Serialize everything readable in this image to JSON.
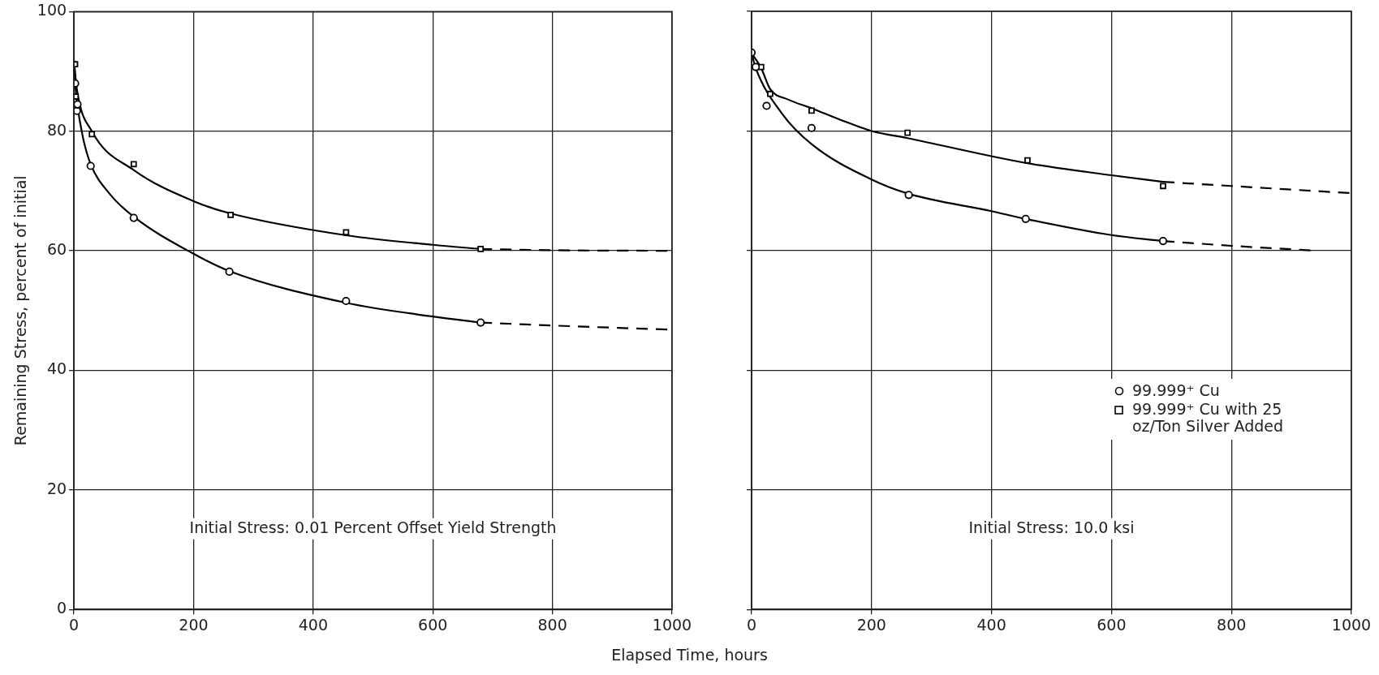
{
  "chart_data": [
    {
      "type": "scatter",
      "xlabel": "Elapsed Time, hours",
      "ylabel": "Remaining Stress, percent of initial",
      "xlim": [
        0,
        1000
      ],
      "ylim": [
        0,
        100
      ],
      "xticks": [
        0,
        200,
        400,
        600,
        800,
        1000
      ],
      "yticks": [
        0,
        20,
        40,
        60,
        80,
        100
      ],
      "grid": true,
      "legend": false,
      "annotations": [
        "Initial Stress: 0.01 Percent Offset Yield Strength"
      ],
      "series": [
        {
          "marker": "circle",
          "color": "#000000",
          "x": [
            2,
            5,
            6,
            28,
            100,
            260,
            455,
            680
          ],
          "values": [
            88,
            83.4,
            84.5,
            74.2,
            65.5,
            56.5,
            51.6,
            48
          ]
        },
        {
          "marker": "square",
          "color": "#000000",
          "x": [
            2,
            3,
            30,
            100,
            262,
            455,
            680
          ],
          "values": [
            91.2,
            85.8,
            79.5,
            74.5,
            66,
            63.1,
            60.3
          ]
        },
        {
          "type": "line",
          "line_style": "solid",
          "color": "#000000",
          "x": [
            0,
            5,
            15,
            28,
            60,
            100,
            200,
            260,
            455,
            600,
            680
          ],
          "values": [
            90,
            85,
            79,
            74.5,
            69.5,
            65.7,
            59.5,
            56.6,
            51.3,
            49,
            48
          ]
        },
        {
          "type": "line",
          "line_style": "dashed",
          "color": "#000000",
          "x": [
            680,
            800,
            1000
          ],
          "values": [
            48,
            47.5,
            46.8
          ]
        },
        {
          "type": "line",
          "line_style": "solid",
          "color": "#000000",
          "x": [
            0,
            5,
            30,
            100,
            200,
            260,
            455,
            600,
            680
          ],
          "values": [
            92,
            87,
            80,
            73.5,
            68.3,
            66.3,
            62.6,
            61,
            60.3
          ]
        },
        {
          "type": "line",
          "line_style": "dashed",
          "color": "#000000",
          "x": [
            680,
            800,
            1000
          ],
          "values": [
            60.3,
            60.1,
            60
          ]
        }
      ]
    },
    {
      "type": "scatter",
      "xlim": [
        0,
        1000
      ],
      "ylim": [
        0,
        100
      ],
      "xticks": [
        0,
        200,
        400,
        600,
        800,
        1000
      ],
      "yticks": [
        0,
        20,
        40,
        60,
        80,
        100
      ],
      "grid": true,
      "tick_labels": "x",
      "legend": "right",
      "annotations": [
        "Initial Stress: 10.0 ksi"
      ],
      "series": [
        {
          "name": "99.999⁺ Cu",
          "marker": "circle",
          "color": "#000000",
          "x": [
            0,
            7,
            25,
            100,
            262,
            457,
            686
          ],
          "values": [
            93.1,
            90.7,
            84.2,
            80.5,
            69.3,
            65.3,
            61.6
          ]
        },
        {
          "name": "99.999⁺ Cu with 25 oz/Ton Silver Added",
          "marker": "square",
          "color": "#000000",
          "x": [
            16,
            31,
            100,
            260,
            460,
            686
          ],
          "values": [
            90.7,
            86.2,
            83.4,
            79.7,
            75.1,
            70.8
          ]
        },
        {
          "type": "line",
          "line_style": "solid",
          "color": "#000000",
          "x": [
            0,
            7,
            50,
            100,
            200,
            262,
            400,
            457,
            600,
            686
          ],
          "values": [
            93,
            90.5,
            83,
            77.8,
            71.9,
            69.5,
            66.6,
            65.3,
            62.6,
            61.6
          ]
        },
        {
          "type": "line",
          "line_style": "dashed",
          "color": "#000000",
          "x": [
            686,
            800,
            940
          ],
          "values": [
            61.6,
            60.8,
            60
          ]
        },
        {
          "type": "line",
          "line_style": "solid",
          "color": "#000000",
          "x": [
            0,
            16,
            31,
            60,
            100,
            150,
            200,
            260,
            460,
            600,
            686
          ],
          "values": [
            93,
            90.5,
            87,
            85.3,
            83.8,
            81.8,
            80,
            78.8,
            74.6,
            72.6,
            71.5
          ]
        },
        {
          "type": "line",
          "line_style": "dashed",
          "color": "#000000",
          "x": [
            686,
            800,
            1000
          ],
          "values": [
            71.5,
            70.8,
            69.6
          ]
        }
      ]
    }
  ]
}
